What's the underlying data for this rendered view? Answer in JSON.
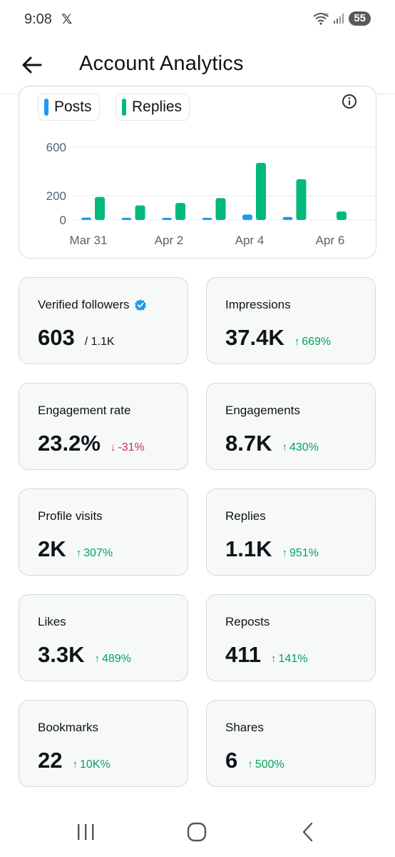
{
  "status_bar": {
    "time": "9:08",
    "x_logo": "𝕏",
    "network": "6E",
    "battery": "55"
  },
  "header": {
    "title": "Account Analytics"
  },
  "chart_data": {
    "type": "bar",
    "categories": [
      "Mar 31",
      "Apr 1",
      "Apr 2",
      "Apr 3",
      "Apr 4",
      "Apr 5",
      "Apr 6"
    ],
    "tick_labels": [
      "Mar 31",
      "Apr 2",
      "Apr 4",
      "Apr 6"
    ],
    "y_ticks": [
      "600",
      "200",
      "0"
    ],
    "ylim": [
      0,
      600
    ],
    "series": [
      {
        "name": "Posts",
        "color": "#1d9bf0",
        "values": [
          20,
          15,
          15,
          15,
          45,
          25,
          0
        ]
      },
      {
        "name": "Replies",
        "color": "#00ba7c",
        "values": [
          190,
          120,
          140,
          180,
          470,
          335,
          70
        ]
      }
    ],
    "grid": true,
    "legend": "top-left"
  },
  "colors": {
    "up": "#00a35a",
    "down": "#d12f3e",
    "verified": "#1d9bf0"
  },
  "metrics": [
    {
      "label": "Verified followers",
      "value": "603",
      "sub": "/ 1.1K",
      "change": "",
      "dir": "none",
      "icon": "verified-badge-icon"
    },
    {
      "label": "Impressions",
      "value": "37.4K",
      "sub": "",
      "change": "669%",
      "dir": "up"
    },
    {
      "label": "Engagement rate",
      "value": "23.2%",
      "sub": "",
      "change": "-31%",
      "dir": "down"
    },
    {
      "label": "Engagements",
      "value": "8.7K",
      "sub": "",
      "change": "430%",
      "dir": "up"
    },
    {
      "label": "Profile visits",
      "value": "2K",
      "sub": "",
      "change": "307%",
      "dir": "up"
    },
    {
      "label": "Replies",
      "value": "1.1K",
      "sub": "",
      "change": "951%",
      "dir": "up"
    },
    {
      "label": "Likes",
      "value": "3.3K",
      "sub": "",
      "change": "489%",
      "dir": "up"
    },
    {
      "label": "Reposts",
      "value": "411",
      "sub": "",
      "change": "141%",
      "dir": "up"
    },
    {
      "label": "Bookmarks",
      "value": "22",
      "sub": "",
      "change": "10K%",
      "dir": "up"
    },
    {
      "label": "Shares",
      "value": "6",
      "sub": "",
      "change": "500%",
      "dir": "up"
    }
  ],
  "nav": {
    "recents": "recents-icon",
    "home": "home-icon",
    "back": "back-icon"
  }
}
